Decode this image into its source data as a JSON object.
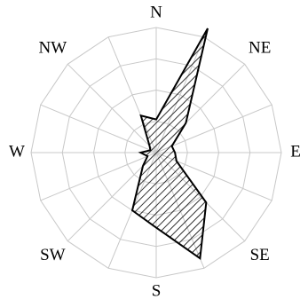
{
  "chart_data": {
    "type": "radar",
    "categories": [
      "N",
      null,
      "NE",
      null,
      "E",
      null,
      "SE",
      null,
      "S",
      null,
      "SW",
      null,
      "W",
      null,
      "NW",
      null
    ],
    "values": [
      5.3,
      21.5,
      6.7,
      2.7,
      3,
      3.5,
      11.3,
      18.3,
      12,
      10,
      3,
      1.5,
      2.5,
      1,
      1.5,
      6.4
    ],
    "color": "#000000",
    "ylim": [
      0,
      20
    ],
    "yticks": [
      0,
      5,
      10,
      15,
      20
    ],
    "grid": true
  }
}
